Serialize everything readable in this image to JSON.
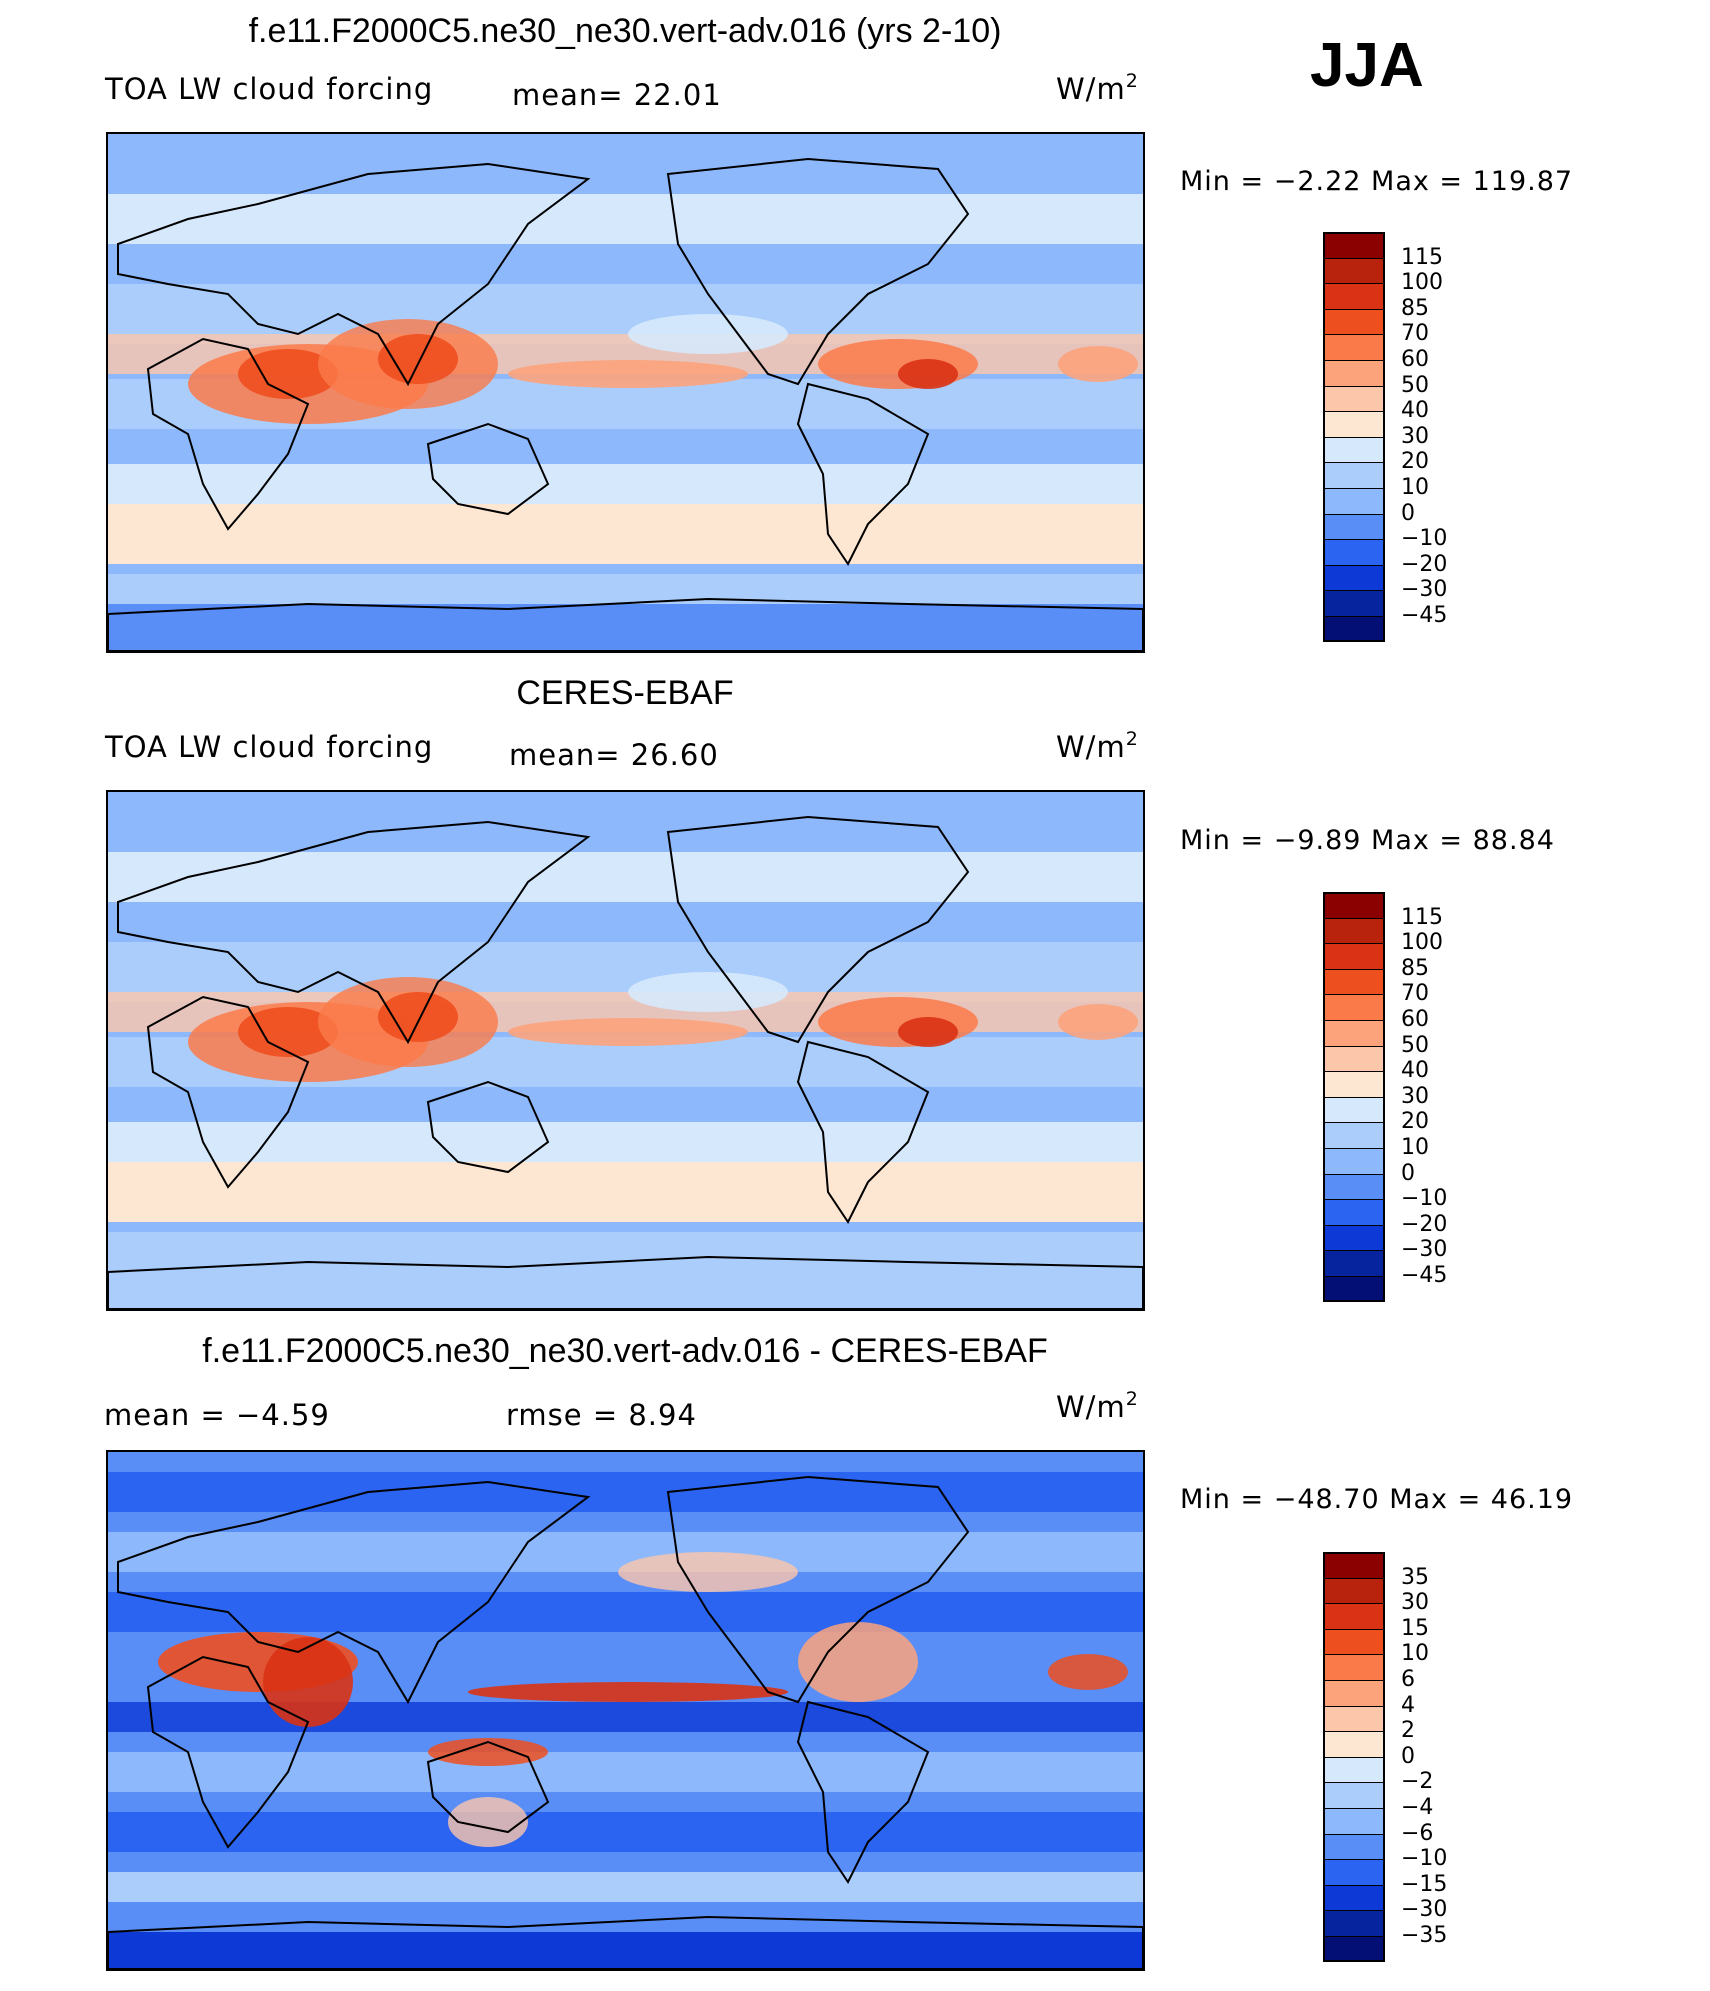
{
  "season": "JJA",
  "panels": [
    {
      "title": "f.e11.F2000C5.ne30_ne30.vert-adv.016 (yrs 2-10)",
      "left_label": "TOA LW cloud forcing",
      "mean_text": "mean=   22.01",
      "units_base": "W/m",
      "units_exp": "2",
      "minmax": "Min =   −2.22  Max  =  119.87",
      "colorbar_labels": [
        "115",
        "100",
        "85",
        "70",
        "60",
        "50",
        "40",
        "30",
        "20",
        "10",
        "0",
        "−10",
        "−20",
        "−30",
        "−45"
      ],
      "colorbar_colors": [
        "#8b0000",
        "#b8230d",
        "#d93214",
        "#ee4f1f",
        "#fb7a4a",
        "#fca37c",
        "#fcc6ab",
        "#fde6d2",
        "#d6e9fc",
        "#aacdfb",
        "#8db8fb",
        "#5a8ef7",
        "#2b64f0",
        "#0d3ad6",
        "#07249f",
        "#030f74"
      ],
      "map_style": "model"
    },
    {
      "title": "CERES-EBAF",
      "left_label": "TOA LW cloud forcing",
      "mean_text": "mean=   26.60",
      "units_base": "W/m",
      "units_exp": "2",
      "minmax": "Min =   −9.89  Max  =   88.84",
      "colorbar_labels": [
        "115",
        "100",
        "85",
        "70",
        "60",
        "50",
        "40",
        "30",
        "20",
        "10",
        "0",
        "−10",
        "−20",
        "−30",
        "−45"
      ],
      "colorbar_colors": [
        "#8b0000",
        "#b8230d",
        "#d93214",
        "#ee4f1f",
        "#fb7a4a",
        "#fca37c",
        "#fcc6ab",
        "#fde6d2",
        "#d6e9fc",
        "#aacdfb",
        "#8db8fb",
        "#5a8ef7",
        "#2b64f0",
        "#0d3ad6",
        "#07249f",
        "#030f74"
      ],
      "map_style": "obs"
    },
    {
      "title": "f.e11.F2000C5.ne30_ne30.vert-adv.016 - CERES-EBAF",
      "left_label": "mean =   −4.59",
      "mean_text": "rmse =    8.94",
      "units_base": "W/m",
      "units_exp": "2",
      "minmax": "Min  = −48.70  Max  =   46.19",
      "colorbar_labels": [
        "35",
        "30",
        "15",
        "10",
        "6",
        "4",
        "2",
        "0",
        "−2",
        "−4",
        "−6",
        "−10",
        "−15",
        "−30",
        "−35"
      ],
      "colorbar_colors": [
        "#8b0000",
        "#b8230d",
        "#d93214",
        "#ee4f1f",
        "#fb7a4a",
        "#fca37c",
        "#fcc6ab",
        "#fde6d2",
        "#d6e9fc",
        "#aacdfb",
        "#8db8fb",
        "#5a8ef7",
        "#2b64f0",
        "#0d3ad6",
        "#07249f",
        "#030f74"
      ],
      "map_style": "diff"
    }
  ]
}
